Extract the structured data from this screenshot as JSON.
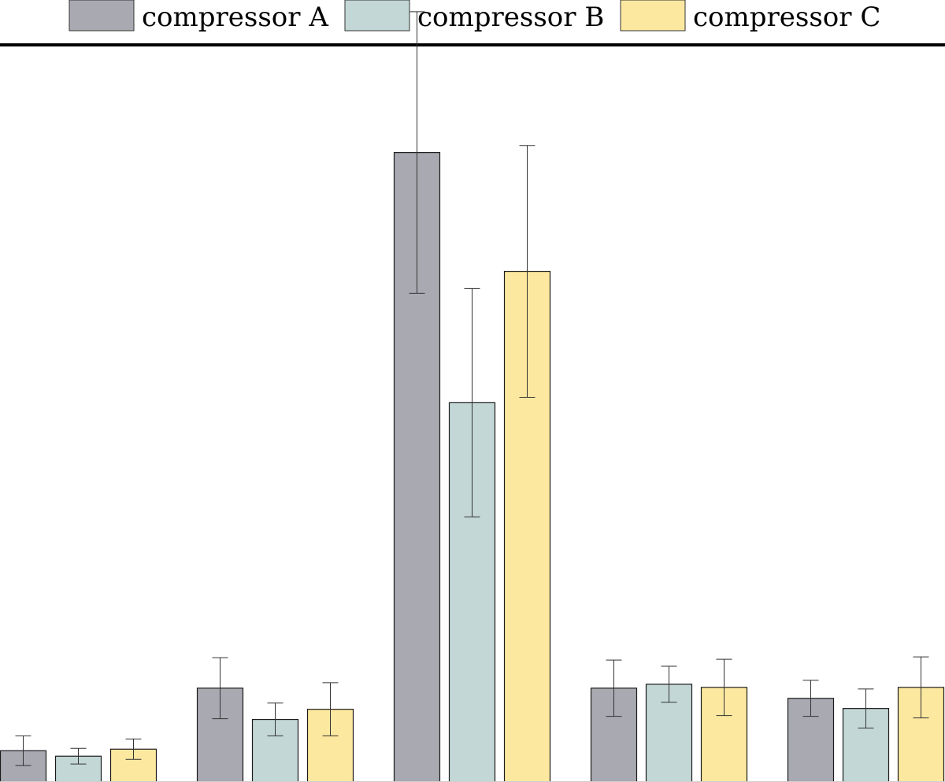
{
  "chart_data": {
    "type": "bar",
    "title": "",
    "xlabel": "",
    "ylabel": "",
    "grid": false,
    "legend_position": "top",
    "ylim": [
      0,
      100
    ],
    "categories": [
      "",
      "",
      "",
      "",
      ""
    ],
    "series": [
      {
        "name": "compressor A",
        "color": "#a9a9b2",
        "values": [
          4.0,
          12.0,
          80.5,
          12.0,
          10.7
        ],
        "errors": [
          1.9,
          3.9,
          18.0,
          3.6,
          2.3
        ]
      },
      {
        "name": "compressor B",
        "color": "#c2d7d6",
        "values": [
          3.3,
          8.0,
          48.5,
          12.5,
          9.4
        ],
        "errors": [
          1.0,
          2.1,
          14.6,
          2.3,
          2.5
        ]
      },
      {
        "name": "compressor C",
        "color": "#fde8a0",
        "values": [
          4.2,
          9.3,
          65.3,
          12.1,
          12.1
        ],
        "errors": [
          1.3,
          3.4,
          16.1,
          3.6,
          3.9
        ]
      }
    ]
  }
}
